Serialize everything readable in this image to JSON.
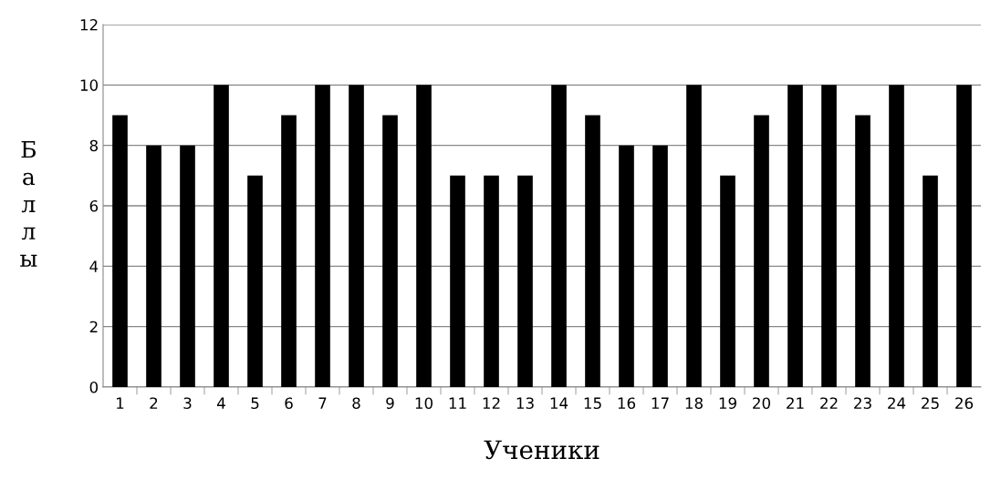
{
  "chart_data": {
    "type": "bar",
    "xlabel": "Ученики",
    "ylabel": "Баллы",
    "categories": [
      "1",
      "2",
      "3",
      "4",
      "5",
      "6",
      "7",
      "8",
      "9",
      "10",
      "11",
      "12",
      "13",
      "14",
      "15",
      "16",
      "17",
      "18",
      "19",
      "20",
      "21",
      "22",
      "23",
      "24",
      "25",
      "26"
    ],
    "values": [
      9,
      8,
      8,
      10,
      7,
      9,
      10,
      10,
      9,
      10,
      7,
      7,
      7,
      10,
      9,
      8,
      8,
      10,
      7,
      9,
      10,
      10,
      9,
      10,
      7,
      10
    ],
    "color": "#000000",
    "ylim": [
      0,
      12
    ],
    "yticks": [
      0,
      2,
      4,
      6,
      8,
      10,
      12
    ],
    "grid": "y"
  }
}
